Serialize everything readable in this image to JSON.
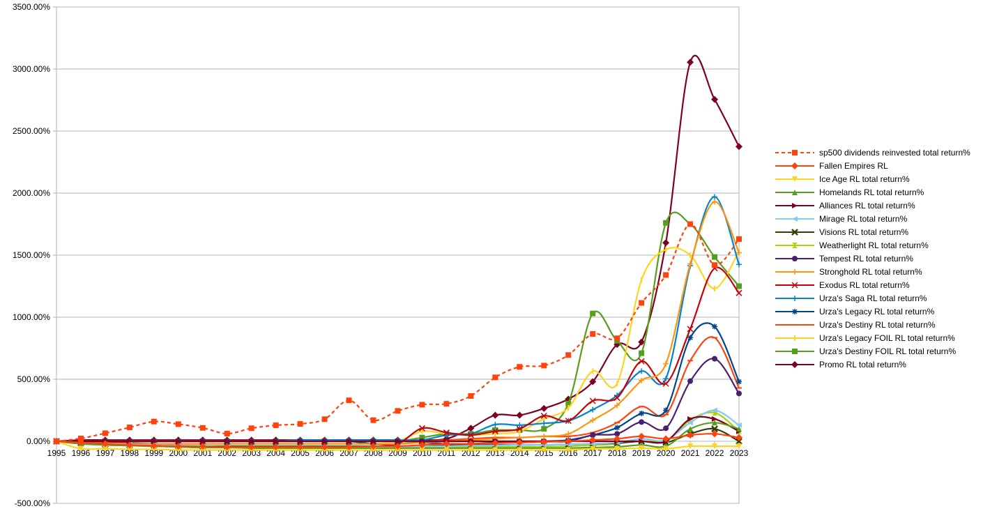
{
  "chart_data": {
    "type": "line",
    "title": "",
    "xlabel": "",
    "ylabel": "",
    "x": [
      1995,
      1996,
      1997,
      1998,
      1999,
      2000,
      2001,
      2002,
      2003,
      2004,
      2005,
      2006,
      2007,
      2008,
      2009,
      2010,
      2011,
      2012,
      2013,
      2014,
      2015,
      2016,
      2017,
      2018,
      2019,
      2020,
      2021,
      2022,
      2023
    ],
    "ylim": [
      -500,
      3500
    ],
    "y_ticks": [
      -500,
      0,
      500,
      1000,
      1500,
      2000,
      2500,
      3000,
      3500
    ],
    "y_tick_labels": [
      "-500.00%",
      "0.00%",
      "500.00%",
      "1000.00%",
      "1500.00%",
      "2000.00%",
      "2500.00%",
      "3000.00%",
      "3500.00%"
    ],
    "x_tick_labels": [
      "1995",
      "1996",
      "1997",
      "1998",
      "1999",
      "2000",
      "2001",
      "2002",
      "2003",
      "2004",
      "2005",
      "2006",
      "2007",
      "2008",
      "2009",
      "2010",
      "2011",
      "2012",
      "2013",
      "2014",
      "2015",
      "2016",
      "2017",
      "2018",
      "2019",
      "2020",
      "2021",
      "2022",
      "2023"
    ],
    "grid": "horizontal",
    "legend_position": "right",
    "series": [
      {
        "name": "sp500 dividends reinvested total return%",
        "color": "#ff420e",
        "marker": "square",
        "dashed": true,
        "values": [
          0,
          23,
          65,
          112,
          159,
          138,
          108,
          62,
          105,
          129,
          140,
          178,
          330,
          170,
          245,
          295,
          302,
          365,
          515,
          600,
          610,
          695,
          865,
          830,
          1115,
          1340,
          1750,
          1420,
          1630
        ]
      },
      {
        "name": "Fallen Empires RL",
        "color": "#ff420e",
        "marker": "diamond",
        "dashed": false,
        "values": [
          0,
          -10,
          -20,
          -30,
          -35,
          -40,
          -40,
          -45,
          -45,
          -45,
          -45,
          -45,
          -45,
          -40,
          -40,
          -30,
          -20,
          -20,
          -15,
          -10,
          -5,
          0,
          10,
          20,
          40,
          20,
          50,
          60,
          30
        ]
      },
      {
        "name": "Ice Age RL total return%",
        "color": "#ffd320",
        "marker": "triangle-down",
        "dashed": false,
        "values": [
          0,
          -60,
          -60,
          -65,
          -65,
          -70,
          -70,
          -70,
          -70,
          -70,
          -70,
          -70,
          -70,
          -70,
          -70,
          -70,
          -70,
          -70,
          -70,
          -70,
          -70,
          -70,
          -60,
          -60,
          -55,
          -60,
          -40,
          -40,
          -40
        ]
      },
      {
        "name": "Homelands RL total return%",
        "color": "#579d1c",
        "marker": "triangle-up",
        "dashed": false,
        "values": [
          0,
          -20,
          -30,
          -35,
          -40,
          -45,
          -50,
          -50,
          -55,
          -55,
          -55,
          -55,
          -55,
          -55,
          -55,
          -55,
          -55,
          -55,
          -55,
          -55,
          -55,
          -55,
          -50,
          -45,
          -30,
          -40,
          100,
          150,
          100
        ]
      },
      {
        "name": "Alliances RL total return%",
        "color": "#7e0021",
        "marker": "triangle-right",
        "dashed": false,
        "values": [
          0,
          0,
          0,
          0,
          0,
          0,
          0,
          0,
          0,
          0,
          0,
          0,
          0,
          0,
          0,
          0,
          0,
          0,
          0,
          0,
          0,
          0,
          0,
          0,
          0,
          0,
          180,
          180,
          80
        ]
      },
      {
        "name": "Mirage RL total return%",
        "color": "#83caff",
        "marker": "triangle-left",
        "dashed": false,
        "values": [
          0,
          -10,
          -20,
          -25,
          -30,
          -35,
          -40,
          -45,
          -45,
          -45,
          -45,
          -45,
          -45,
          -45,
          -45,
          -40,
          -40,
          -35,
          -35,
          -30,
          -30,
          -25,
          -20,
          -10,
          20,
          10,
          150,
          250,
          130
        ]
      },
      {
        "name": "Visions RL total return%",
        "color": "#314004",
        "marker": "x-cross",
        "dashed": false,
        "values": [
          0,
          -15,
          -25,
          -30,
          -30,
          -35,
          -40,
          -40,
          -40,
          -40,
          -40,
          -40,
          -40,
          -40,
          -40,
          -35,
          -35,
          -30,
          -30,
          -30,
          -30,
          -25,
          -20,
          -15,
          0,
          -10,
          60,
          100,
          0
        ]
      },
      {
        "name": "Weatherlight RL total return%",
        "color": "#aecf00",
        "marker": "hourglass",
        "dashed": false,
        "values": [
          0,
          -20,
          -30,
          -35,
          -40,
          -45,
          -50,
          -50,
          -55,
          -55,
          -55,
          -55,
          -55,
          -55,
          -55,
          -50,
          -50,
          -45,
          -45,
          -45,
          -45,
          -40,
          -30,
          -20,
          20,
          0,
          170,
          230,
          80
        ]
      },
      {
        "name": "Tempest RL total return%",
        "color": "#4b1f6f",
        "marker": "circle",
        "dashed": false,
        "values": [
          0,
          0,
          0,
          0,
          0,
          0,
          0,
          0,
          0,
          0,
          0,
          0,
          0,
          0,
          0,
          0,
          0,
          0,
          0,
          0,
          0,
          0,
          50,
          60,
          155,
          105,
          485,
          665,
          385
        ]
      },
      {
        "name": "Stronghold RL total return%",
        "color": "#ff950e",
        "marker": "plus",
        "dashed": false,
        "values": [
          0,
          -10,
          -15,
          -20,
          -20,
          -20,
          -20,
          -20,
          -20,
          -20,
          -20,
          -20,
          -20,
          -20,
          -20,
          -10,
          0,
          10,
          20,
          30,
          40,
          60,
          170,
          290,
          490,
          625,
          1430,
          1930,
          1520
        ]
      },
      {
        "name": "Exodus RL total return%",
        "color": "#c5000b",
        "marker": "x",
        "dashed": false,
        "values": [
          0,
          -10,
          -10,
          -15,
          -20,
          -20,
          -20,
          -20,
          -20,
          -20,
          -20,
          -20,
          -20,
          -20,
          -20,
          105,
          70,
          50,
          80,
          100,
          205,
          165,
          325,
          350,
          645,
          465,
          905,
          1395,
          1195
        ]
      },
      {
        "name": "Urza's Saga RL total return%",
        "color": "#0084d1",
        "marker": "plus",
        "dashed": false,
        "values": [
          0,
          0,
          0,
          0,
          0,
          0,
          0,
          0,
          0,
          0,
          10,
          10,
          10,
          10,
          10,
          10,
          50,
          60,
          135,
          130,
          145,
          165,
          255,
          370,
          565,
          505,
          1415,
          1970,
          1425
        ]
      },
      {
        "name": "Urza's Legacy RL total return%",
        "color": "#004586",
        "marker": "asterisk",
        "dashed": false,
        "values": [
          0,
          0,
          0,
          0,
          0,
          0,
          0,
          0,
          0,
          0,
          0,
          0,
          0,
          -20,
          -20,
          -10,
          -20,
          -20,
          -10,
          -10,
          0,
          10,
          50,
          110,
          225,
          250,
          835,
          925,
          480
        ]
      },
      {
        "name": "Urza's Destiny RL total return%",
        "color": "#ff420e",
        "marker": "dash",
        "dashed": false,
        "values": [
          0,
          0,
          0,
          0,
          0,
          0,
          0,
          0,
          0,
          0,
          0,
          0,
          0,
          0,
          0,
          0,
          10,
          20,
          30,
          30,
          40,
          40,
          70,
          150,
          280,
          215,
          650,
          835,
          430
        ]
      },
      {
        "name": "Urza's Legacy FOIL RL total return%",
        "color": "#ffd320",
        "marker": "bar",
        "dashed": false,
        "values": [
          0,
          0,
          0,
          0,
          0,
          0,
          0,
          0,
          0,
          0,
          0,
          0,
          0,
          0,
          0,
          80,
          60,
          50,
          60,
          80,
          180,
          270,
          565,
          465,
          1300,
          1545,
          1500,
          1230,
          1530
        ]
      },
      {
        "name": "Urza's Destiny FOIL RL total return%",
        "color": "#579d1c",
        "marker": "square",
        "dashed": false,
        "values": [
          0,
          0,
          0,
          0,
          0,
          0,
          0,
          0,
          0,
          0,
          0,
          0,
          0,
          0,
          0,
          30,
          60,
          60,
          90,
          90,
          100,
          305,
          1030,
          810,
          710,
          1760,
          1750,
          1485,
          1250
        ]
      },
      {
        "name": "Promo RL total return%",
        "color": "#7e0021",
        "marker": "diamond",
        "dashed": false,
        "values": [
          0,
          10,
          10,
          10,
          10,
          10,
          10,
          10,
          10,
          10,
          10,
          10,
          10,
          10,
          10,
          10,
          20,
          105,
          210,
          210,
          265,
          340,
          480,
          780,
          800,
          1600,
          3055,
          2755,
          2375
        ]
      }
    ]
  }
}
